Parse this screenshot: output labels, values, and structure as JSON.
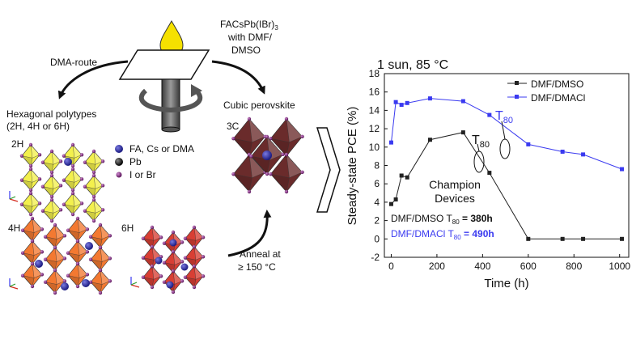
{
  "schematic": {
    "left_route_label": "DMA-route",
    "right_route_label_line1": "FACsPb(IBr)",
    "right_route_label_sub": "3",
    "right_route_label_line2": "with DMF/",
    "right_route_label_line3": "DMSO",
    "hex_title_line1": "Hexagonal polytypes",
    "hex_title_line2": "(2H, 4H or 6H)",
    "cubic_title": "Cubic perovskite",
    "label_2h": "2H",
    "label_4h": "4H",
    "label_6h": "6H",
    "label_3c": "3C",
    "anneal_line1": "Anneal at",
    "anneal_line2": "≥ 150 °C",
    "legend": [
      {
        "label": "FA, Cs or DMA",
        "color": "#1f1f8f"
      },
      {
        "label": "Pb",
        "color": "#111111"
      },
      {
        "label": "I or Br",
        "color": "#6a1b6a"
      }
    ],
    "colors": {
      "droplet": "#f5e100",
      "yellow_phase": "#f2ee3a",
      "orange_phase": "#f26a1b",
      "red_phase": "#d42a1e",
      "cubic_phase": "#5a1414"
    }
  },
  "chart_data": {
    "type": "line",
    "title": "1 sun, 85 °C",
    "xlabel": "Time (h)",
    "ylabel": "Steady-state PCE (%)",
    "xlim": [
      -30,
      1040
    ],
    "ylim": [
      -2,
      18
    ],
    "xticks": [
      0,
      200,
      400,
      600,
      800,
      1000
    ],
    "yticks": [
      -2,
      0,
      2,
      4,
      6,
      8,
      10,
      12,
      14,
      16,
      18
    ],
    "legend_position": "top-right",
    "series": [
      {
        "name": "DMF/DMSO",
        "color": "#222222",
        "x": [
          0,
          20,
          45,
          70,
          170,
          315,
          430,
          600,
          750,
          840,
          1010
        ],
        "y": [
          3.8,
          4.3,
          6.9,
          6.7,
          10.8,
          11.6,
          7.2,
          0,
          0,
          0,
          0
        ]
      },
      {
        "name": "DMF/DMACl",
        "color": "#3a3af0",
        "x": [
          0,
          20,
          45,
          70,
          170,
          315,
          430,
          600,
          750,
          840,
          1010
        ],
        "y": [
          10.5,
          14.9,
          14.6,
          14.8,
          15.3,
          15.0,
          13.5,
          10.3,
          9.5,
          9.2,
          7.6
        ]
      }
    ],
    "annotations": {
      "t80_main": "T",
      "t80_sub": "80",
      "champion_line1": "Champion",
      "champion_line2": "Devices",
      "result1_label": "DMF/DMSO T",
      "result1_sub": "80",
      "result1_value": " = 380h",
      "result2_label": "DMF/DMACl T",
      "result2_sub": "80",
      "result2_value": " = 490h"
    }
  }
}
